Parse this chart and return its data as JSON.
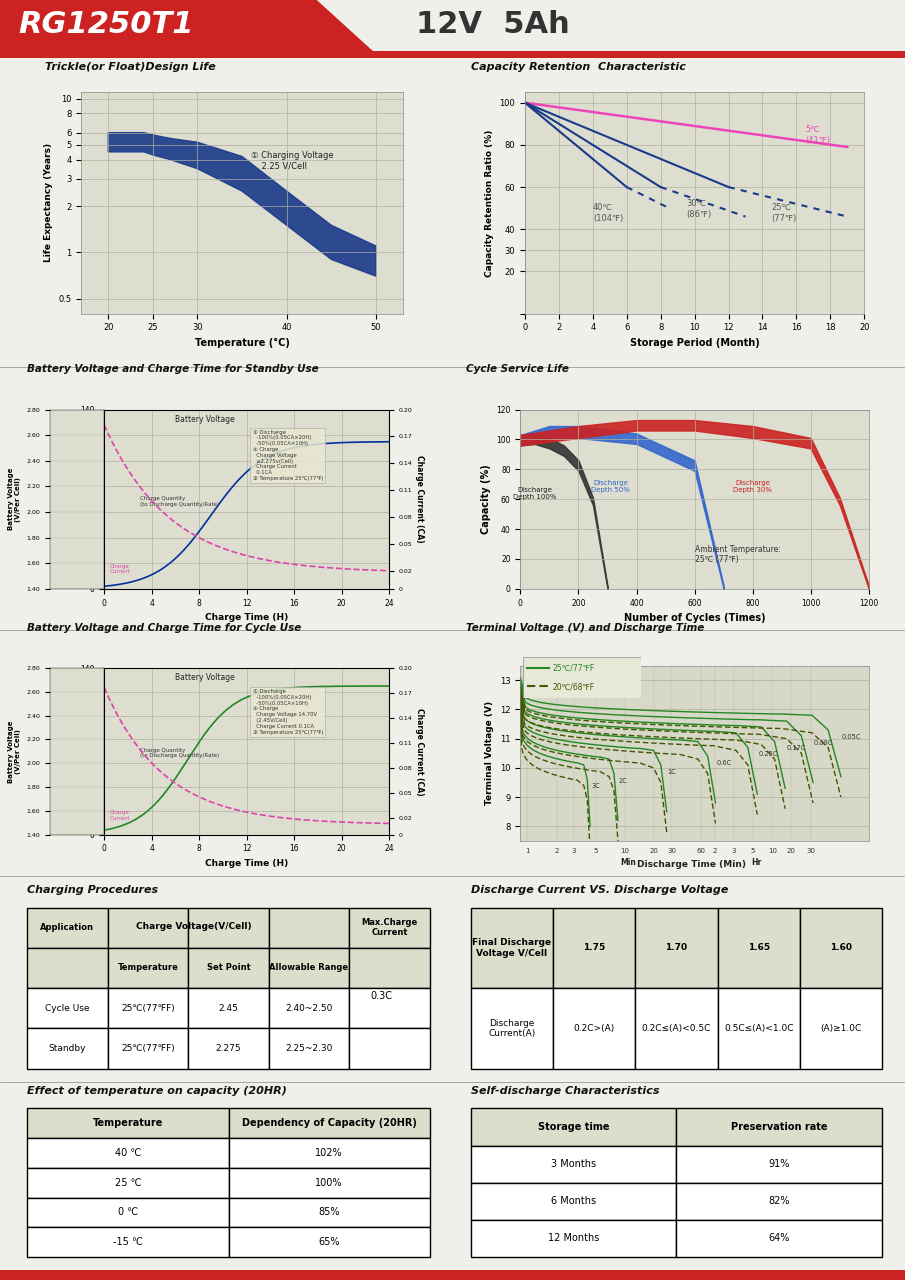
{
  "title_model": "RG1250T1",
  "title_spec": "12V  5Ah",
  "bg_color": "#f5f5f0",
  "header_red": "#cc2222",
  "grid_bg": "#d8d8c8",
  "plot_bg": "#e8e8d8",
  "trickle_title": "Trickle(or Float)Design Life",
  "trickle_xlabel": "Temperature (°C)",
  "trickle_ylabel": "Life Expectancy (Years)",
  "trickle_annotation": "① Charging Voltage\n2.25 V/Cell",
  "trickle_upper_x": [
    20,
    22,
    24,
    25,
    27,
    30,
    35,
    40,
    45,
    50
  ],
  "trickle_upper_y": [
    6.0,
    6.0,
    6.0,
    5.8,
    5.5,
    5.2,
    4.2,
    2.5,
    1.5,
    1.1
  ],
  "trickle_lower_x": [
    20,
    22,
    24,
    25,
    27,
    30,
    35,
    40,
    45,
    50
  ],
  "trickle_lower_y": [
    4.5,
    4.5,
    4.5,
    4.3,
    4.0,
    3.5,
    2.5,
    1.5,
    0.9,
    0.7
  ],
  "cap_ret_title": "Capacity Retention  Characteristic",
  "cap_ret_xlabel": "Storage Period (Month)",
  "cap_ret_ylabel": "Capacity Retention Ratio (%)",
  "bv_standby_title": "Battery Voltage and Charge Time for Standby Use",
  "bv_cycle_title": "Battery Voltage and Charge Time for Cycle Use",
  "bv_xlabel": "Charge Time (H)",
  "cycle_life_title": "Cycle Service Life",
  "cycle_life_xlabel": "Number of Cycles (Times)",
  "cycle_life_ylabel": "Capacity (%)",
  "terminal_title": "Terminal Voltage (V) and Discharge Time",
  "terminal_xlabel": "Discharge Time (Min)",
  "terminal_ylabel": "Terminal Voltage (V)",
  "charge_proc_title": "Charging Procedures",
  "discharge_vs_title": "Discharge Current VS. Discharge Voltage",
  "temp_effect_title": "Effect of temperature on capacity (20HR)",
  "self_discharge_title": "Self-discharge Characteristics"
}
